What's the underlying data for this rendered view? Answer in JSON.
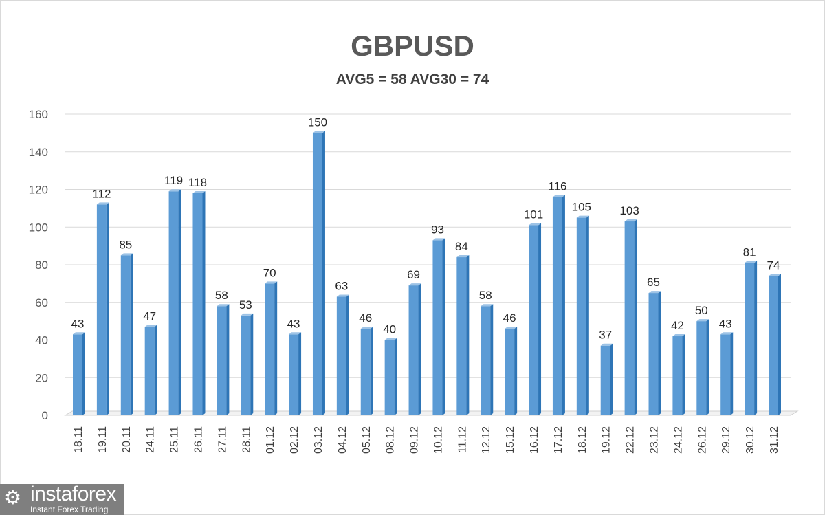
{
  "chart_data": {
    "type": "bar",
    "title": "GBPUSD",
    "subtitle": "AVG5 = 58 AVG30 = 74",
    "xlabel": "",
    "ylabel": "",
    "ylim": [
      0,
      160
    ],
    "yticks": [
      0,
      20,
      40,
      60,
      80,
      100,
      120,
      140,
      160
    ],
    "grid": true,
    "bar_color": "#5b9bd5",
    "categories": [
      "18.11",
      "19.11",
      "20.11",
      "24.11",
      "25.11",
      "26.11",
      "27.11",
      "28.11",
      "01.12",
      "02.12",
      "03.12",
      "04.12",
      "05.12",
      "08.12",
      "09.12",
      "10.12",
      "11.12",
      "12.12",
      "15.12",
      "16.12",
      "17.12",
      "18.12",
      "19.12",
      "22.12",
      "23.12",
      "24.12",
      "26.12",
      "29.12",
      "30.12",
      "31.12"
    ],
    "values": [
      43,
      112,
      85,
      47,
      119,
      118,
      58,
      53,
      70,
      43,
      150,
      63,
      46,
      40,
      69,
      93,
      84,
      58,
      46,
      101,
      116,
      105,
      37,
      103,
      65,
      42,
      50,
      43,
      81,
      74
    ]
  },
  "logo": {
    "name": "instaforex",
    "tagline": "Instant Forex Trading"
  }
}
